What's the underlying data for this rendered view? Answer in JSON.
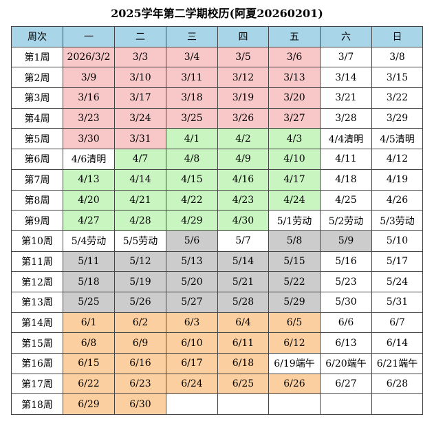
{
  "title": "2025学年第二学期校历(阿夏20260201)",
  "headers": [
    "周次",
    "一",
    "二",
    "三",
    "四",
    "五",
    "六",
    "日"
  ],
  "colors": {
    "pink": "#f8c8c8",
    "green": "#c8f5c0",
    "gray": "#cccccc",
    "orange": "#fbcf9f",
    "none": "#ffffff",
    "header": "#a9d5e8"
  },
  "weeks": [
    {
      "week": "第1周",
      "days": [
        [
          "2026/3/2",
          "pink"
        ],
        [
          "3/3",
          "pink"
        ],
        [
          "3/4",
          "pink"
        ],
        [
          "3/5",
          "pink"
        ],
        [
          "3/6",
          "pink"
        ],
        [
          "3/7",
          "none"
        ],
        [
          "3/8",
          "none"
        ]
      ]
    },
    {
      "week": "第2周",
      "days": [
        [
          "3/9",
          "pink"
        ],
        [
          "3/10",
          "pink"
        ],
        [
          "3/11",
          "pink"
        ],
        [
          "3/12",
          "pink"
        ],
        [
          "3/13",
          "pink"
        ],
        [
          "3/14",
          "none"
        ],
        [
          "3/15",
          "none"
        ]
      ]
    },
    {
      "week": "第3周",
      "days": [
        [
          "3/16",
          "pink"
        ],
        [
          "3/17",
          "pink"
        ],
        [
          "3/18",
          "pink"
        ],
        [
          "3/19",
          "pink"
        ],
        [
          "3/20",
          "pink"
        ],
        [
          "3/21",
          "none"
        ],
        [
          "3/22",
          "none"
        ]
      ]
    },
    {
      "week": "第4周",
      "days": [
        [
          "3/23",
          "pink"
        ],
        [
          "3/24",
          "pink"
        ],
        [
          "3/25",
          "pink"
        ],
        [
          "3/26",
          "pink"
        ],
        [
          "3/27",
          "pink"
        ],
        [
          "3/28",
          "none"
        ],
        [
          "3/29",
          "none"
        ]
      ]
    },
    {
      "week": "第5周",
      "days": [
        [
          "3/30",
          "pink"
        ],
        [
          "3/31",
          "pink"
        ],
        [
          "4/1",
          "green"
        ],
        [
          "4/2",
          "green"
        ],
        [
          "4/3",
          "green"
        ],
        [
          "4/4清明",
          "none"
        ],
        [
          "4/5清明",
          "none"
        ]
      ]
    },
    {
      "week": "第6周",
      "days": [
        [
          "4/6清明",
          "none"
        ],
        [
          "4/7",
          "green"
        ],
        [
          "4/8",
          "green"
        ],
        [
          "4/9",
          "green"
        ],
        [
          "4/10",
          "green"
        ],
        [
          "4/11",
          "none"
        ],
        [
          "4/12",
          "none"
        ]
      ]
    },
    {
      "week": "第7周",
      "days": [
        [
          "4/13",
          "green"
        ],
        [
          "4/14",
          "green"
        ],
        [
          "4/15",
          "green"
        ],
        [
          "4/16",
          "green"
        ],
        [
          "4/17",
          "green"
        ],
        [
          "4/18",
          "none"
        ],
        [
          "4/19",
          "none"
        ]
      ]
    },
    {
      "week": "第8周",
      "days": [
        [
          "4/20",
          "green"
        ],
        [
          "4/21",
          "green"
        ],
        [
          "4/22",
          "green"
        ],
        [
          "4/23",
          "green"
        ],
        [
          "4/24",
          "green"
        ],
        [
          "4/25",
          "none"
        ],
        [
          "4/26",
          "none"
        ]
      ]
    },
    {
      "week": "第9周",
      "days": [
        [
          "4/27",
          "green"
        ],
        [
          "4/28",
          "green"
        ],
        [
          "4/29",
          "green"
        ],
        [
          "4/30",
          "green"
        ],
        [
          "5/1劳动",
          "none"
        ],
        [
          "5/2劳动",
          "none"
        ],
        [
          "5/3劳动",
          "none"
        ]
      ]
    },
    {
      "week": "第10周",
      "days": [
        [
          "5/4劳动",
          "none"
        ],
        [
          "5/5劳动",
          "none"
        ],
        [
          "5/6",
          "gray"
        ],
        [
          "5/7",
          "none"
        ],
        [
          "5/8",
          "gray"
        ],
        [
          "5/9",
          "gray"
        ],
        [
          "5/10",
          "none"
        ]
      ]
    },
    {
      "week": "第11周",
      "days": [
        [
          "5/11",
          "gray"
        ],
        [
          "5/12",
          "gray"
        ],
        [
          "5/13",
          "gray"
        ],
        [
          "5/14",
          "gray"
        ],
        [
          "5/15",
          "gray"
        ],
        [
          "5/16",
          "none"
        ],
        [
          "5/17",
          "none"
        ]
      ]
    },
    {
      "week": "第12周",
      "days": [
        [
          "5/18",
          "gray"
        ],
        [
          "5/19",
          "gray"
        ],
        [
          "5/20",
          "gray"
        ],
        [
          "5/21",
          "gray"
        ],
        [
          "5/22",
          "gray"
        ],
        [
          "5/23",
          "none"
        ],
        [
          "5/24",
          "none"
        ]
      ]
    },
    {
      "week": "第13周",
      "days": [
        [
          "5/25",
          "gray"
        ],
        [
          "5/26",
          "gray"
        ],
        [
          "5/27",
          "gray"
        ],
        [
          "5/28",
          "gray"
        ],
        [
          "5/29",
          "gray"
        ],
        [
          "5/30",
          "none"
        ],
        [
          "5/31",
          "none"
        ]
      ]
    },
    {
      "week": "第14周",
      "days": [
        [
          "6/1",
          "orange"
        ],
        [
          "6/2",
          "orange"
        ],
        [
          "6/3",
          "orange"
        ],
        [
          "6/4",
          "orange"
        ],
        [
          "6/5",
          "orange"
        ],
        [
          "6/6",
          "none"
        ],
        [
          "6/7",
          "none"
        ]
      ]
    },
    {
      "week": "第15周",
      "days": [
        [
          "6/8",
          "orange"
        ],
        [
          "6/9",
          "orange"
        ],
        [
          "6/10",
          "orange"
        ],
        [
          "6/11",
          "orange"
        ],
        [
          "6/12",
          "orange"
        ],
        [
          "6/13",
          "none"
        ],
        [
          "6/14",
          "none"
        ]
      ]
    },
    {
      "week": "第16周",
      "days": [
        [
          "6/15",
          "orange"
        ],
        [
          "6/16",
          "orange"
        ],
        [
          "6/17",
          "orange"
        ],
        [
          "6/18",
          "orange"
        ],
        [
          "6/19端午",
          "none"
        ],
        [
          "6/20端午",
          "none"
        ],
        [
          "6/21端午",
          "none"
        ]
      ]
    },
    {
      "week": "第17周",
      "days": [
        [
          "6/22",
          "orange"
        ],
        [
          "6/23",
          "orange"
        ],
        [
          "6/24",
          "orange"
        ],
        [
          "6/25",
          "orange"
        ],
        [
          "6/26",
          "orange"
        ],
        [
          "6/27",
          "none"
        ],
        [
          "6/28",
          "none"
        ]
      ]
    },
    {
      "week": "第18周",
      "days": [
        [
          "6/29",
          "orange"
        ],
        [
          "6/30",
          "orange"
        ],
        [
          "",
          "none"
        ],
        [
          "",
          "none"
        ],
        [
          "",
          "none"
        ],
        [
          "",
          "none"
        ],
        [
          "",
          "none"
        ]
      ]
    }
  ]
}
